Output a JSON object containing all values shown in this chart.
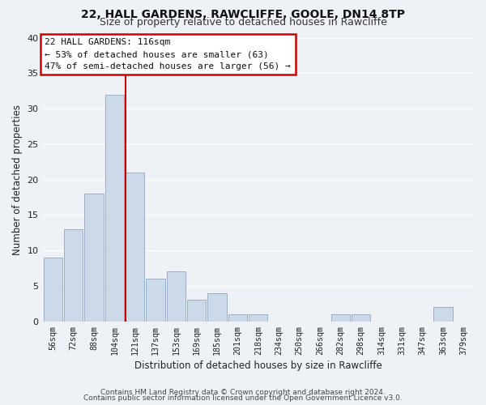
{
  "title": "22, HALL GARDENS, RAWCLIFFE, GOOLE, DN14 8TP",
  "subtitle": "Size of property relative to detached houses in Rawcliffe",
  "xlabel": "Distribution of detached houses by size in Rawcliffe",
  "ylabel": "Number of detached properties",
  "bar_color": "#ccd9e8",
  "bar_edge_color": "#9ab0c8",
  "marker_line_color": "#cc0000",
  "background_color": "#eef2f7",
  "grid_color": "#ffffff",
  "bins": [
    "56sqm",
    "72sqm",
    "88sqm",
    "104sqm",
    "121sqm",
    "137sqm",
    "153sqm",
    "169sqm",
    "185sqm",
    "201sqm",
    "218sqm",
    "234sqm",
    "250sqm",
    "266sqm",
    "282sqm",
    "298sqm",
    "314sqm",
    "331sqm",
    "347sqm",
    "363sqm",
    "379sqm"
  ],
  "values": [
    9,
    13,
    18,
    32,
    21,
    6,
    7,
    3,
    4,
    1,
    1,
    0,
    0,
    0,
    1,
    1,
    0,
    0,
    0,
    2,
    0
  ],
  "marker_bin_index": 4,
  "annotation_title": "22 HALL GARDENS: 116sqm",
  "annotation_line1": "← 53% of detached houses are smaller (63)",
  "annotation_line2": "47% of semi-detached houses are larger (56) →",
  "ylim": [
    0,
    40
  ],
  "yticks": [
    0,
    5,
    10,
    15,
    20,
    25,
    30,
    35,
    40
  ],
  "footer1": "Contains HM Land Registry data © Crown copyright and database right 2024.",
  "footer2": "Contains public sector information licensed under the Open Government Licence v3.0."
}
